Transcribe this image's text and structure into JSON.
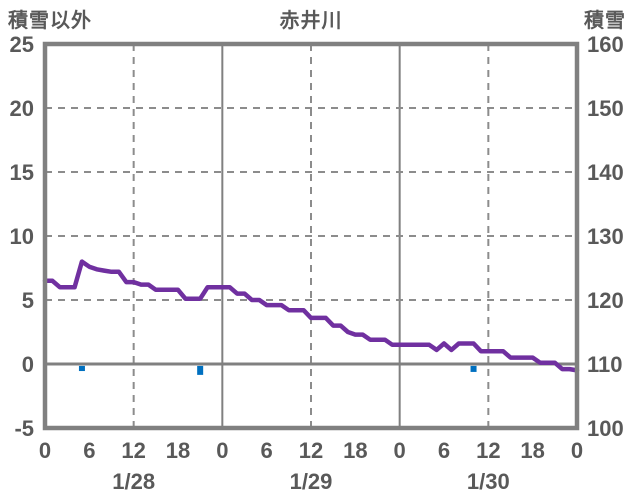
{
  "header": {
    "left_axis_title": "積雪以外",
    "chart_title": "赤井川",
    "right_axis_title": "積雪"
  },
  "colors": {
    "line": "#7030A0",
    "bar": "#0070C0",
    "border": "#808080",
    "grid_dashed": "#8c8c8c",
    "grid_solid": "#808080",
    "zero_line": "#808080",
    "text": "#595959",
    "background": "#ffffff"
  },
  "chart_data": {
    "type": "line",
    "title": "赤井川",
    "left_axis": {
      "label": "積雪以外",
      "min": -5,
      "max": 25,
      "ticks": [
        25,
        20,
        15,
        10,
        5,
        0,
        -5
      ]
    },
    "right_axis": {
      "label": "積雪",
      "min": 100,
      "max": 160,
      "ticks": [
        160,
        150,
        140,
        130,
        120,
        110,
        100
      ]
    },
    "x_axis": {
      "unit": "hour",
      "min": 0,
      "max": 72,
      "tick_hours": [
        0,
        6,
        12,
        18,
        24,
        30,
        36,
        42,
        48,
        54,
        60,
        66,
        72
      ],
      "tick_labels": [
        "0",
        "6",
        "12",
        "18",
        "0",
        "6",
        "12",
        "18",
        "0",
        "6",
        "12",
        "18",
        "0"
      ],
      "date_labels": [
        {
          "label": "1/28",
          "hour": 12
        },
        {
          "label": "1/29",
          "hour": 36
        },
        {
          "label": "1/30",
          "hour": 60
        }
      ]
    },
    "gridlines": {
      "horizontal_dashed_values": [
        20,
        15,
        10,
        5
      ],
      "horizontal_solid_values": [
        0
      ],
      "vertical_dashed_hours": [
        12,
        36,
        60
      ],
      "vertical_solid_hours": [
        24,
        48
      ]
    },
    "series": [
      {
        "name": "snow-depth-line",
        "type": "line",
        "axis": "left",
        "color": "#7030A0",
        "x_start_hour": 0,
        "x_step_hours": 1,
        "values": [
          6.5,
          6.5,
          6.0,
          6.0,
          6.0,
          8.0,
          7.6,
          7.4,
          7.3,
          7.2,
          7.2,
          6.4,
          6.4,
          6.2,
          6.2,
          5.8,
          5.8,
          5.8,
          5.8,
          5.1,
          5.1,
          5.1,
          6.0,
          6.0,
          6.0,
          6.0,
          5.5,
          5.5,
          5.0,
          5.0,
          4.6,
          4.6,
          4.6,
          4.2,
          4.2,
          4.2,
          3.6,
          3.6,
          3.6,
          3.0,
          3.0,
          2.5,
          2.3,
          2.3,
          1.9,
          1.9,
          1.9,
          1.5,
          1.5,
          1.5,
          1.5,
          1.5,
          1.5,
          1.1,
          1.6,
          1.1,
          1.6,
          1.6,
          1.6,
          1.0,
          1.0,
          1.0,
          1.0,
          0.5,
          0.5,
          0.5,
          0.5,
          0.1,
          0.1,
          0.1,
          -0.4,
          -0.4,
          -0.5
        ]
      },
      {
        "name": "snowfall-bars",
        "type": "bar",
        "axis": "left",
        "color": "#0070C0",
        "points": [
          {
            "hour": 5,
            "from": -0.15,
            "to": -0.55
          },
          {
            "hour": 21,
            "from": -0.15,
            "to": -0.85
          },
          {
            "hour": 58,
            "from": -0.15,
            "to": -0.62
          }
        ]
      }
    ]
  }
}
